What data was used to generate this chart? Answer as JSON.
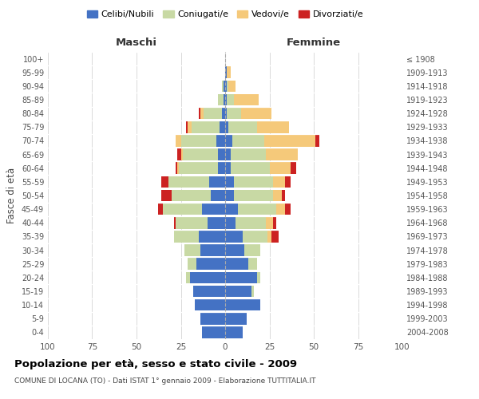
{
  "age_groups": [
    "0-4",
    "5-9",
    "10-14",
    "15-19",
    "20-24",
    "25-29",
    "30-34",
    "35-39",
    "40-44",
    "45-49",
    "50-54",
    "55-59",
    "60-64",
    "65-69",
    "70-74",
    "75-79",
    "80-84",
    "85-89",
    "90-94",
    "95-99",
    "100+"
  ],
  "birth_years": [
    "2004-2008",
    "1999-2003",
    "1994-1998",
    "1989-1993",
    "1984-1988",
    "1979-1983",
    "1974-1978",
    "1969-1973",
    "1964-1968",
    "1959-1963",
    "1954-1958",
    "1949-1953",
    "1944-1948",
    "1939-1943",
    "1934-1938",
    "1929-1933",
    "1924-1928",
    "1919-1923",
    "1914-1918",
    "1909-1913",
    "≤ 1908"
  ],
  "maschi": {
    "celibi": [
      13,
      14,
      17,
      18,
      20,
      16,
      14,
      15,
      10,
      13,
      8,
      9,
      4,
      4,
      5,
      3,
      2,
      1,
      1,
      0,
      0
    ],
    "coniugati": [
      0,
      0,
      0,
      0,
      2,
      5,
      9,
      14,
      18,
      22,
      22,
      23,
      22,
      20,
      20,
      16,
      10,
      3,
      1,
      0,
      0
    ],
    "vedovi": [
      0,
      0,
      0,
      0,
      0,
      0,
      0,
      0,
      0,
      0,
      0,
      0,
      1,
      1,
      3,
      2,
      2,
      0,
      0,
      0,
      0
    ],
    "divorziati": [
      0,
      0,
      0,
      0,
      0,
      0,
      0,
      0,
      1,
      3,
      6,
      4,
      1,
      2,
      0,
      1,
      1,
      0,
      0,
      0,
      0
    ]
  },
  "femmine": {
    "nubili": [
      10,
      12,
      20,
      15,
      18,
      13,
      11,
      10,
      6,
      7,
      5,
      5,
      3,
      3,
      4,
      2,
      1,
      1,
      1,
      1,
      0
    ],
    "coniugate": [
      0,
      0,
      0,
      1,
      2,
      5,
      9,
      14,
      17,
      22,
      22,
      22,
      22,
      20,
      18,
      16,
      8,
      4,
      1,
      0,
      0
    ],
    "vedove": [
      0,
      0,
      0,
      0,
      0,
      0,
      0,
      2,
      4,
      5,
      5,
      7,
      12,
      18,
      29,
      18,
      17,
      14,
      4,
      2,
      0
    ],
    "divorziate": [
      0,
      0,
      0,
      0,
      0,
      0,
      0,
      4,
      2,
      3,
      2,
      3,
      3,
      0,
      2,
      0,
      0,
      0,
      0,
      0,
      0
    ]
  },
  "colors": {
    "celibi": "#4472C4",
    "coniugati": "#c8d9a4",
    "vedovi": "#f5c97a",
    "divorziati": "#cc2222"
  },
  "xlim": [
    -100,
    100
  ],
  "xticks": [
    -100,
    -75,
    -50,
    -25,
    0,
    25,
    50,
    75,
    100
  ],
  "xticklabels": [
    "100",
    "75",
    "50",
    "25",
    "0",
    "25",
    "50",
    "75",
    "100"
  ],
  "title": "Popolazione per età, sesso e stato civile - 2009",
  "subtitle": "COMUNE DI LOCANA (TO) - Dati ISTAT 1° gennaio 2009 - Elaborazione TUTTITALIA.IT",
  "ylabel_left": "Fasce di età",
  "maschi_label": "Maschi",
  "femmine_label": "Femmine",
  "legend_labels": [
    "Celibi/Nubili",
    "Coniugati/e",
    "Vedovi/e",
    "Divorziati/e"
  ],
  "bar_height": 0.85
}
